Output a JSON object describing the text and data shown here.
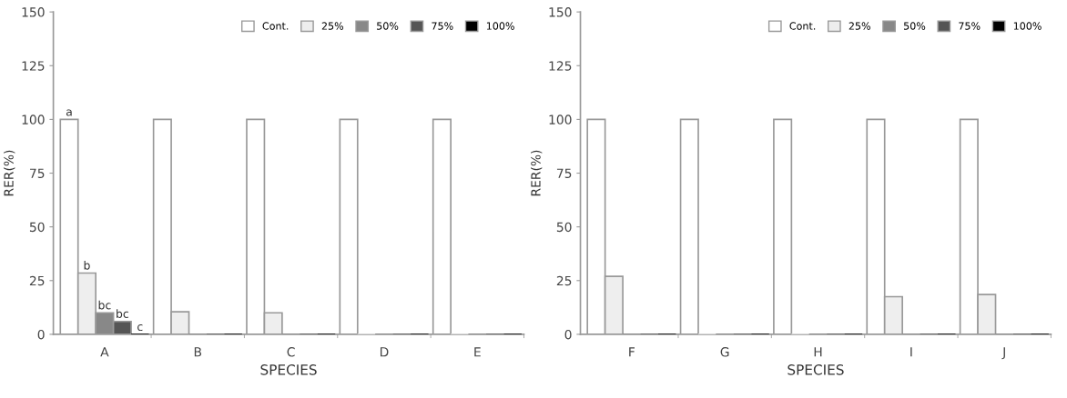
{
  "chart_data": [
    {
      "type": "bar",
      "xlabel": "SPECIES",
      "ylabel": "RER(%)",
      "categories": [
        "A",
        "B",
        "C",
        "D",
        "E"
      ],
      "ylim": [
        0,
        150
      ],
      "yticks": [
        0,
        25,
        50,
        75,
        100,
        125,
        150
      ],
      "grid": false,
      "legend": "top right",
      "series": [
        {
          "name": "Cont.",
          "color": "#ffffff",
          "values": [
            100,
            100,
            100,
            100,
            100
          ],
          "value_labels": [
            "a",
            null,
            null,
            null,
            null
          ]
        },
        {
          "name": "25%",
          "color": "#eeeeee",
          "values": [
            28.5,
            10.5,
            10,
            0,
            0
          ],
          "value_labels": [
            "b",
            null,
            null,
            null,
            null
          ]
        },
        {
          "name": "50%",
          "color": "#888888",
          "values": [
            10,
            0,
            0,
            0,
            0
          ],
          "value_labels": [
            "bc",
            null,
            null,
            null,
            null
          ]
        },
        {
          "name": "75%",
          "color": "#555555",
          "values": [
            6,
            0,
            0,
            0,
            0
          ],
          "value_labels": [
            "bc",
            null,
            null,
            null,
            null
          ]
        },
        {
          "name": "100%",
          "color": "#000000",
          "values": [
            0,
            0,
            0,
            0,
            0
          ],
          "value_labels": [
            "c",
            null,
            null,
            null,
            null
          ]
        }
      ]
    },
    {
      "type": "bar",
      "xlabel": "SPECIES",
      "ylabel": "RER(%)",
      "categories": [
        "F",
        "G",
        "H",
        "I",
        "J"
      ],
      "ylim": [
        0,
        150
      ],
      "yticks": [
        0,
        25,
        50,
        75,
        100,
        125,
        150
      ],
      "grid": false,
      "legend": "top right",
      "series": [
        {
          "name": "Cont.",
          "color": "#ffffff",
          "values": [
            100,
            100,
            100,
            100,
            100
          ]
        },
        {
          "name": "25%",
          "color": "#eeeeee",
          "values": [
            27,
            0,
            0,
            17.5,
            18.5
          ]
        },
        {
          "name": "50%",
          "color": "#888888",
          "values": [
            0,
            0,
            0,
            0,
            0
          ]
        },
        {
          "name": "75%",
          "color": "#555555",
          "values": [
            0,
            0,
            0,
            0,
            0
          ]
        },
        {
          "name": "100%",
          "color": "#000000",
          "values": [
            0,
            0,
            0,
            0,
            0
          ]
        }
      ]
    }
  ]
}
